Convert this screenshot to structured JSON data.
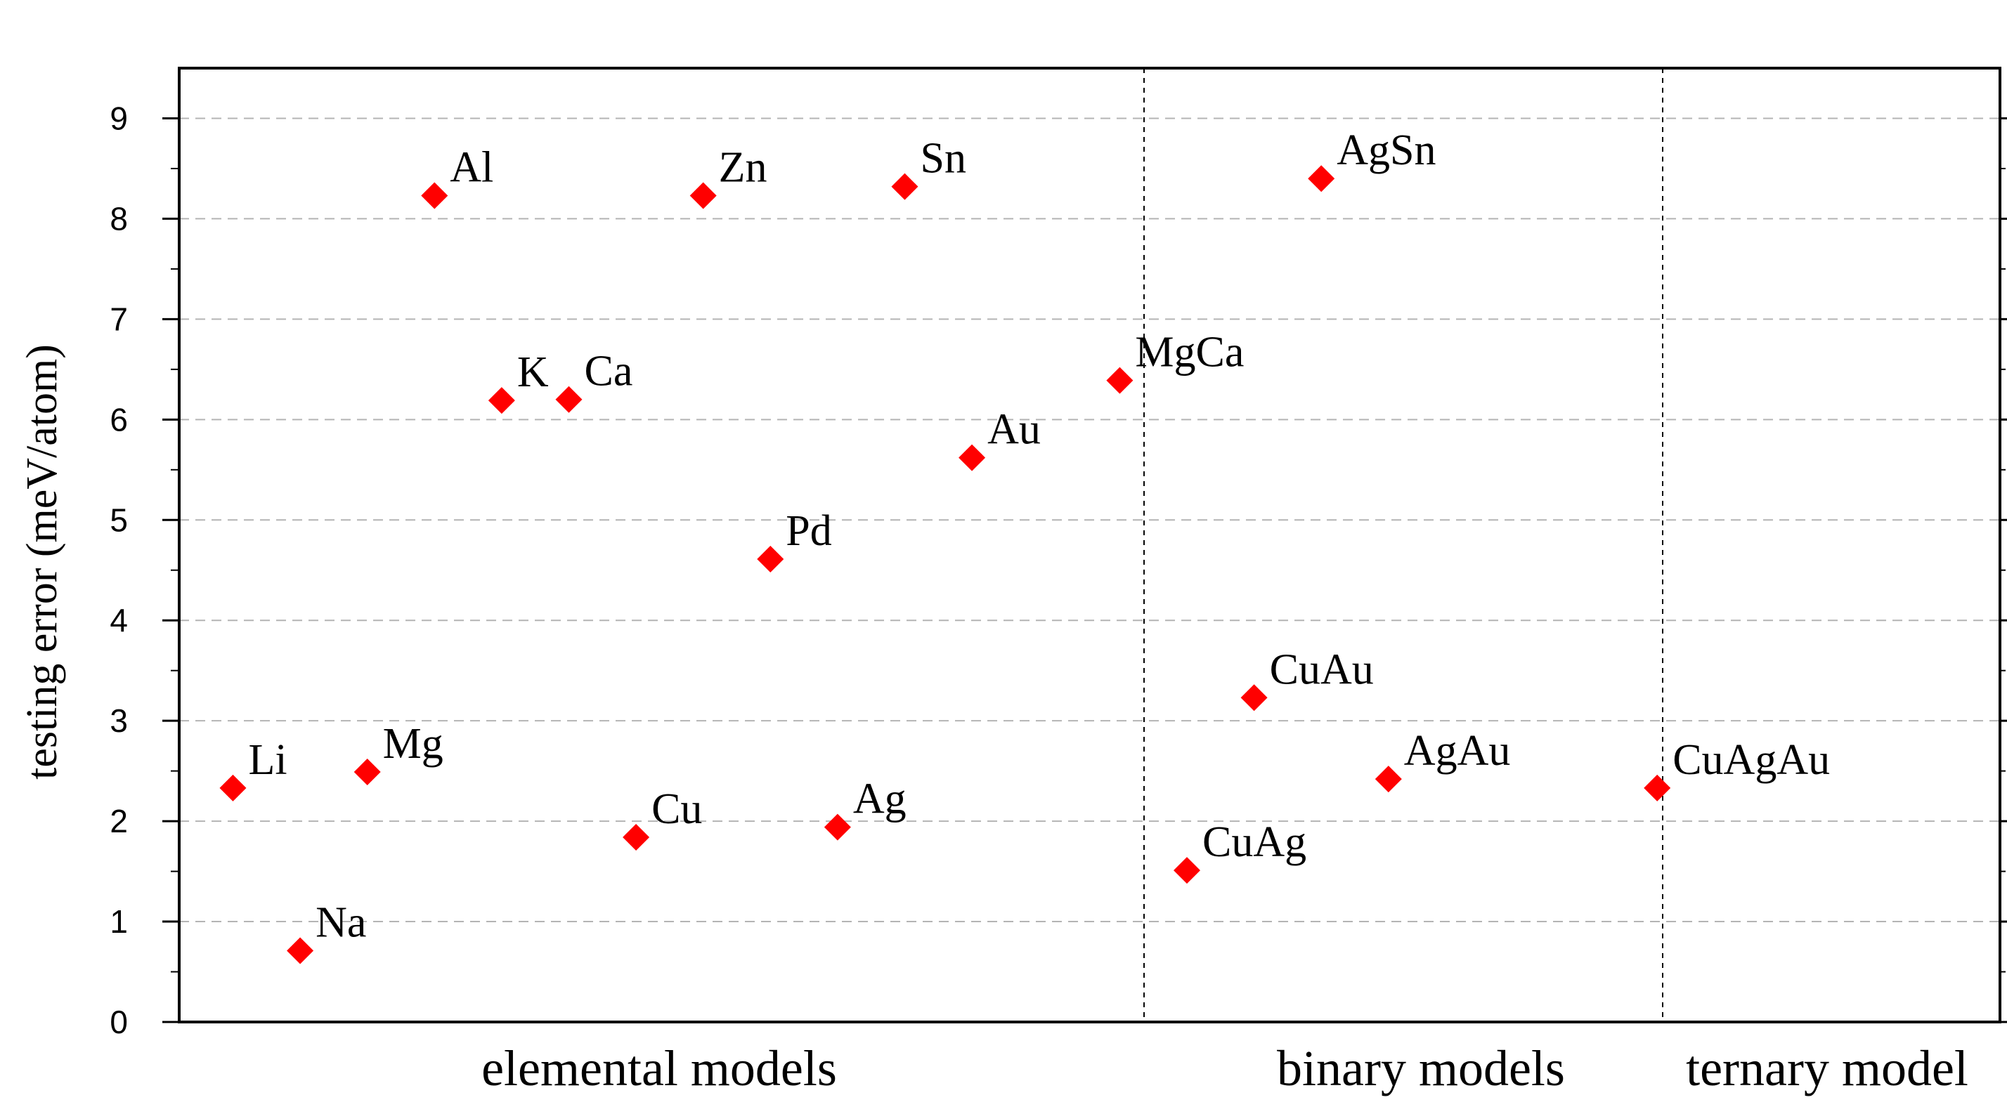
{
  "chart_data": {
    "type": "scatter",
    "ylabel": "testing error (meV/atom)",
    "ylim": [
      0,
      9.5
    ],
    "yticks": [
      "0",
      "1",
      "2",
      "3",
      "4",
      "5",
      "6",
      "7",
      "8",
      "9"
    ],
    "grid": "horizontal dashed",
    "marker": "diamond",
    "marker_color": "#ff0000",
    "groups": [
      {
        "label": "elemental models"
      },
      {
        "label": "binary models"
      },
      {
        "label": "ternary model"
      }
    ],
    "points": [
      {
        "label": "Li",
        "x": 1,
        "y": 2.33,
        "group": 0
      },
      {
        "label": "Na",
        "x": 2,
        "y": 0.71,
        "group": 0
      },
      {
        "label": "Mg",
        "x": 3,
        "y": 2.49,
        "group": 0
      },
      {
        "label": "Al",
        "x": 4,
        "y": 8.23,
        "group": 0
      },
      {
        "label": "K",
        "x": 5,
        "y": 6.19,
        "group": 0
      },
      {
        "label": "Ca",
        "x": 6,
        "y": 6.2,
        "group": 0
      },
      {
        "label": "Cu",
        "x": 7,
        "y": 1.84,
        "group": 0
      },
      {
        "label": "Zn",
        "x": 8,
        "y": 8.23,
        "group": 0
      },
      {
        "label": "Pd",
        "x": 9,
        "y": 4.61,
        "group": 0
      },
      {
        "label": "Ag",
        "x": 10,
        "y": 1.94,
        "group": 0
      },
      {
        "label": "Sn",
        "x": 11,
        "y": 8.32,
        "group": 0
      },
      {
        "label": "Au",
        "x": 12,
        "y": 5.62,
        "group": 0
      },
      {
        "label": "MgCa",
        "x": 14.2,
        "y": 6.39,
        "group": 1
      },
      {
        "label": "CuAg",
        "x": 15.2,
        "y": 1.51,
        "group": 1
      },
      {
        "label": "CuAu",
        "x": 16.2,
        "y": 3.23,
        "group": 1
      },
      {
        "label": "AgSn",
        "x": 17.2,
        "y": 8.4,
        "group": 1
      },
      {
        "label": "AgAu",
        "x": 18.2,
        "y": 2.42,
        "group": 1
      },
      {
        "label": "CuAgAu",
        "x": 22.2,
        "y": 2.33,
        "group": 2
      }
    ]
  }
}
